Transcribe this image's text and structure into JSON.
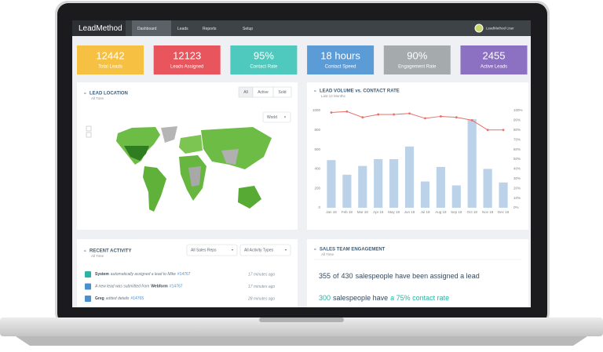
{
  "nav": {
    "brand": "LeadMethod",
    "items": [
      "Dashboard",
      "Leads",
      "Reports",
      "Setup"
    ],
    "user": "LeadMethod User"
  },
  "kpis": [
    {
      "value": "12442",
      "label": "Total Leads",
      "color": "#f6c142"
    },
    {
      "value": "12123",
      "label": "Leads Assigned",
      "color": "#e9555c"
    },
    {
      "value": "95%",
      "label": "Contact Rate",
      "color": "#4fc8bd"
    },
    {
      "value": "18 hours",
      "label": "Contact Speed",
      "color": "#5b9bd6"
    },
    {
      "value": "90%",
      "label": "Engagement Rate",
      "color": "#a5aaac"
    },
    {
      "value": "2455",
      "label": "Active Leads",
      "color": "#8c70c2"
    }
  ],
  "lead_location": {
    "title": "LEAD LOCATION",
    "subtitle": "All Time",
    "filters": [
      "All",
      "Active",
      "Sold"
    ],
    "region": "World"
  },
  "chart_data": {
    "type": "bar_line",
    "title": "LEAD VOLUME vs. CONTACT RATE",
    "subtitle": "Last 12 Months",
    "categories": [
      "Jan 18",
      "Feb 18",
      "Mar 18",
      "Apr 18",
      "May 18",
      "Jun 18",
      "Jul 18",
      "Aug 18",
      "Sep 18",
      "Oct 18",
      "Nov 18",
      "Dec 18"
    ],
    "series": [
      {
        "type": "bar",
        "color": "#bcd2e8",
        "values": [
          490,
          340,
          430,
          500,
          500,
          630,
          270,
          420,
          230,
          910,
          400,
          260
        ]
      },
      {
        "type": "line",
        "color": "#e8706a",
        "axis": "y2",
        "values": [
          98,
          99,
          93,
          96,
          96,
          97,
          92,
          94,
          93,
          90,
          80,
          80
        ]
      }
    ],
    "ylim": [
      0,
      1000
    ],
    "yticks": [
      0,
      200,
      400,
      600,
      800,
      1000
    ],
    "y2lim": [
      0,
      100
    ],
    "y2ticks": [
      {
        "value": 0,
        "label": "0%"
      },
      {
        "value": 10,
        "label": "10%"
      },
      {
        "value": 20,
        "label": "20%"
      },
      {
        "value": 30,
        "label": "30%"
      },
      {
        "value": 40,
        "label": "40%"
      },
      {
        "value": 50,
        "label": "50%"
      },
      {
        "value": 60,
        "label": "60%"
      },
      {
        "value": 70,
        "label": "70%"
      },
      {
        "value": 80,
        "label": "80%"
      },
      {
        "value": 90,
        "label": "90%"
      },
      {
        "value": 100,
        "label": "100%"
      }
    ],
    "grid": false
  },
  "activity": {
    "title": "RECENT ACTIVITY",
    "subtitle": "All Time",
    "filters": [
      "All Sales Reps",
      "All Activity Types"
    ],
    "items": [
      {
        "actor": "System",
        "text": "automatically assigned a lead to Mike",
        "ref": "#14767",
        "time": "17 minutes ago"
      },
      {
        "text": "A new lead was submitted from",
        "source": "Webform",
        "ref": "#14767",
        "time": "17 minutes ago"
      },
      {
        "actor": "Greg",
        "text": "added details",
        "ref": "#14765",
        "time": "28 minutes ago"
      }
    ]
  },
  "engagement": {
    "title": "SALES TEAM ENGAGEMENT",
    "subtitle": "All Time",
    "line1": {
      "count": "355",
      "mid": "of",
      "total": "430",
      "rest": "salespeople have been assigned a lead"
    },
    "line2": {
      "count": "300",
      "mid": "salespeople have",
      "rate": "a 75% contact rate"
    }
  }
}
